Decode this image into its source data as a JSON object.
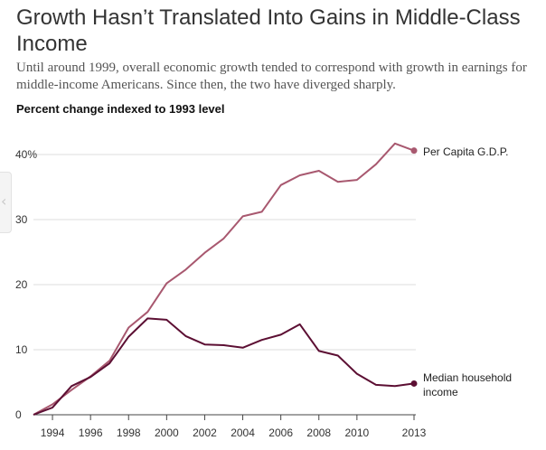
{
  "header": {
    "title": "Growth Hasn’t Translated Into Gains in Middle-Class Income",
    "subtitle": "Until around 1999, overall economic growth tended to correspond with growth in earnings for middle-income Americans. Since then, the two have diverged sharply.",
    "chart_heading": "Percent change indexed to 1993 level"
  },
  "colors": {
    "gdp": "#a8586f",
    "income": "#5c0f33",
    "grid": "#dddddd",
    "axis": "#444444"
  },
  "chart_data": {
    "type": "line",
    "title": "Percent change indexed to 1993 level",
    "xlim": [
      1993,
      2013
    ],
    "ylim": [
      0,
      40
    ],
    "x_ticks": [
      1994,
      1996,
      1998,
      2000,
      2002,
      2004,
      2006,
      2008,
      2010,
      2013
    ],
    "x_tick_labels": [
      "1994",
      "1996",
      "1998",
      "2000",
      "2002",
      "2004",
      "2006",
      "2008",
      "2010",
      "2013"
    ],
    "y_ticks": [
      0,
      10,
      20,
      30,
      40
    ],
    "y_tick_labels": [
      "0",
      "10",
      "20",
      "30",
      "40%"
    ],
    "grid": "horizontal",
    "x": [
      1993,
      1994,
      1995,
      1996,
      1997,
      1998,
      1999,
      2000,
      2001,
      2002,
      2003,
      2004,
      2005,
      2006,
      2007,
      2008,
      2009,
      2010,
      2011,
      2012,
      2013
    ],
    "series": [
      {
        "name": "Per Capita G.D.P.",
        "color": "#a8586f",
        "values": [
          0,
          1.6,
          3.8,
          5.9,
          8.3,
          13.4,
          15.8,
          20.2,
          22.3,
          24.9,
          27.1,
          30.5,
          31.2,
          35.3,
          36.8,
          37.5,
          35.8,
          36.1,
          38.5,
          41.7,
          40.6
        ]
      },
      {
        "name": "Median household income",
        "color": "#5c0f33",
        "values": [
          0,
          1.1,
          4.4,
          5.8,
          7.9,
          12.0,
          14.8,
          14.6,
          12.1,
          10.8,
          10.7,
          10.3,
          11.5,
          12.3,
          13.9,
          9.8,
          9.1,
          6.3,
          4.6,
          4.4,
          4.8
        ]
      }
    ]
  },
  "labels": {
    "gdp": "Per Capita G.D.P.",
    "income_line1": "Median household",
    "income_line2": "income"
  }
}
